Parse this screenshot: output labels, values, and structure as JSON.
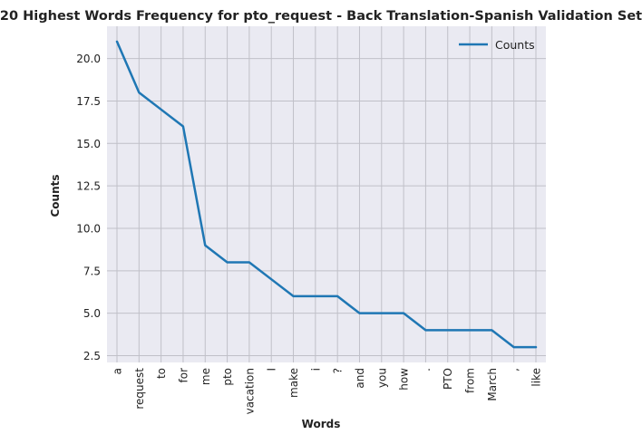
{
  "chart_data": {
    "type": "line",
    "title": "20 Highest Words Frequency for pto_request - Back Translation-Spanish Validation Set",
    "xlabel": "Words",
    "ylabel": "Counts",
    "categories": [
      "a",
      "request",
      "to",
      "for",
      "me",
      "pto",
      "vacation",
      "I",
      "make",
      "i",
      "?",
      "and",
      "you",
      "how",
      ".",
      "PTO",
      "from",
      "March",
      ",",
      "like"
    ],
    "series": [
      {
        "name": "Counts",
        "values": [
          21,
          18,
          17,
          16,
          9,
          8,
          8,
          7,
          6,
          6,
          6,
          5,
          5,
          5,
          4,
          4,
          4,
          4,
          3,
          3
        ],
        "color": "#1f77b4"
      }
    ],
    "ylim": [
      2.1,
      21.9
    ],
    "yticks": [
      2.5,
      5.0,
      7.5,
      10.0,
      12.5,
      15.0,
      17.5,
      20.0
    ],
    "ytick_labels": [
      "2.5",
      "5.0",
      "7.5",
      "10.0",
      "12.5",
      "15.0",
      "17.5",
      "20.0"
    ],
    "grid": true,
    "legend_position": "top-right",
    "plot_background": "#eaeaf2",
    "grid_color": "#c0c0c8"
  }
}
